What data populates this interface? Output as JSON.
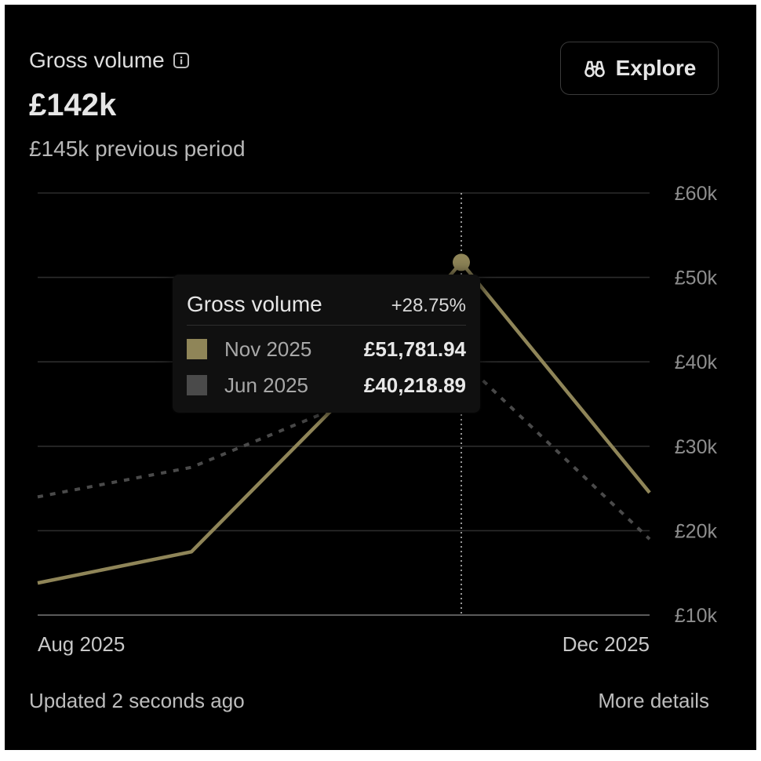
{
  "header": {
    "title": "Gross volume",
    "info_icon": "info-icon",
    "value": "£142k",
    "previous": "£145k previous period"
  },
  "explore": {
    "label": "Explore",
    "icon": "binoculars-icon"
  },
  "tooltip": {
    "title": "Gross volume",
    "change": "+28.75%",
    "rows": [
      {
        "period": "Nov 2025",
        "value": "£51,781.94",
        "color": "#8f8558"
      },
      {
        "period": "Jun 2025",
        "value": "£40,218.89",
        "color": "#4a4a4a"
      }
    ]
  },
  "chart_data": {
    "type": "line",
    "title": "Gross volume",
    "ylim": [
      10000,
      60000
    ],
    "yticks": [
      "£60k",
      "£50k",
      "£40k",
      "£30k",
      "£20k",
      "£10k"
    ],
    "ytick_values": [
      60000,
      50000,
      40000,
      30000,
      20000,
      10000
    ],
    "xlabels": [
      "Aug 2025",
      "Dec 2025"
    ],
    "grid": true,
    "series": [
      {
        "style": "solid",
        "color": "#8f8558",
        "x": [
          0,
          1,
          2,
          3,
          4
        ],
        "y": [
          13800,
          17500,
          36000,
          51781.94,
          24500
        ]
      },
      {
        "style": "dotted",
        "color": "#4a4a4a",
        "x": [
          0,
          1,
          2,
          3,
          4
        ],
        "y": [
          24000,
          27500,
          35000,
          40218.89,
          19000
        ]
      }
    ],
    "highlight_index": 3
  },
  "footer": {
    "updated": "Updated 2 seconds ago",
    "more_details": "More details"
  }
}
